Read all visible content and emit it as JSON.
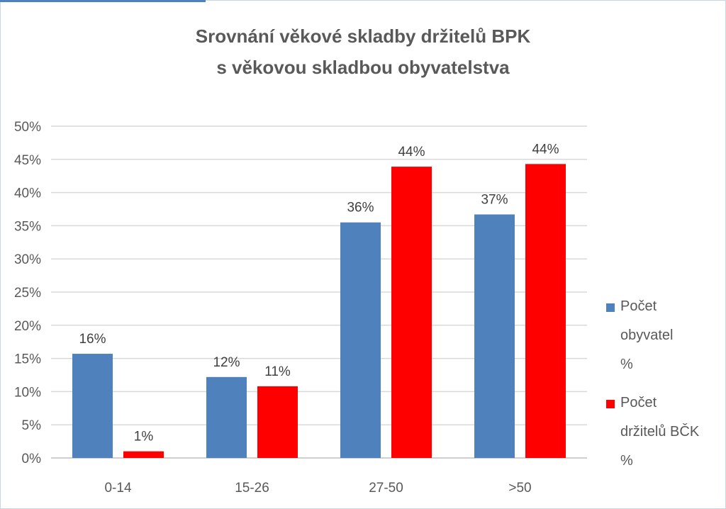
{
  "chart_data": {
    "type": "bar",
    "title_line1": "Srovnání věkové skladby držitelů BPK",
    "title_line2": "s věkovou skladbou obyvatelstva",
    "categories": [
      "0-14",
      "15-26",
      "27-50",
      ">50"
    ],
    "series": [
      {
        "name": "Počet obyvatel %",
        "legend_lines": [
          "Počet",
          "obyvatel",
          "%"
        ],
        "color": "#4f81bd",
        "values": [
          15.7,
          12.2,
          35.5,
          36.7
        ],
        "labels": [
          "16%",
          "12%",
          "36%",
          "37%"
        ]
      },
      {
        "name": "Počet držitelů BČK %",
        "legend_lines": [
          "Počet",
          "držitelů BČK",
          "%"
        ],
        "color": "#ff0000",
        "values": [
          1.0,
          10.8,
          43.9,
          44.3
        ],
        "labels": [
          "1%",
          "11%",
          "44%",
          "44%"
        ]
      }
    ],
    "ylim": [
      0,
      50
    ],
    "yticks": [
      "0%",
      "5%",
      "10%",
      "15%",
      "20%",
      "25%",
      "30%",
      "35%",
      "40%",
      "45%",
      "50%"
    ],
    "grid": true,
    "legend_position": "right"
  }
}
